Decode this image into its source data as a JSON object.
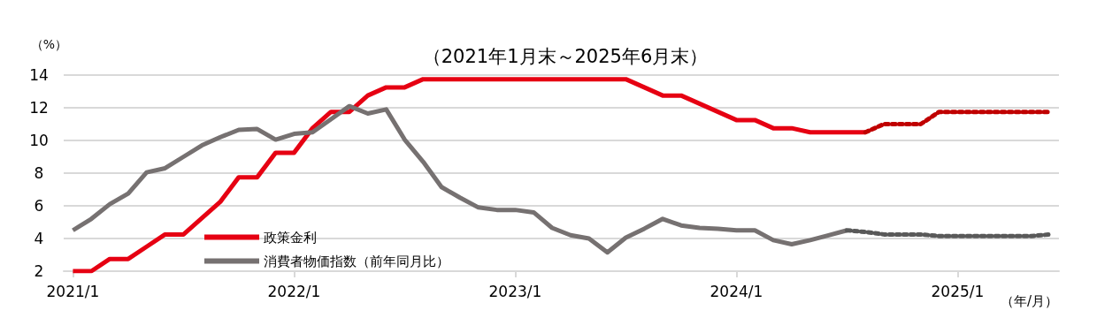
{
  "chart_data": {
    "type": "line",
    "title": "（2021年1月末～2025年6月末）",
    "ylabel": "（%）",
    "annotations": [
      "（年/月）"
    ],
    "categories": [
      "2021/1",
      null,
      null,
      null,
      null,
      null,
      null,
      null,
      null,
      null,
      null,
      null,
      "2022/1",
      null,
      null,
      null,
      null,
      null,
      null,
      null,
      null,
      null,
      null,
      null,
      "2023/1",
      null,
      null,
      null,
      null,
      null,
      null,
      null,
      null,
      null,
      null,
      null,
      "2024/1",
      null,
      null,
      null,
      null,
      null,
      null,
      null,
      null,
      null,
      null,
      null,
      "2025/1",
      null,
      null,
      null,
      null,
      null
    ],
    "series": [
      {
        "name": "政策金利",
        "color": "#e60012",
        "line_style": "solid",
        "values": [
          2.0,
          2.0,
          2.75,
          2.75,
          3.5,
          4.25,
          4.25,
          5.25,
          6.25,
          7.75,
          7.75,
          9.25,
          9.25,
          10.75,
          11.75,
          11.75,
          12.75,
          13.25,
          13.25,
          13.75,
          13.75,
          13.75,
          13.75,
          13.75,
          13.75,
          13.75,
          13.75,
          13.75,
          13.75,
          13.75,
          13.75,
          13.25,
          12.75,
          12.75,
          12.25,
          11.75,
          11.25,
          11.25,
          10.75,
          10.75,
          10.5,
          10.5,
          10.5,
          10.5,
          null,
          null,
          null,
          null,
          null,
          null,
          null,
          null,
          null,
          null
        ]
      },
      {
        "name": "消費者物価指数（前年同月比）",
        "color": "#767171",
        "line_style": "solid",
        "values": [
          4.5,
          5.2,
          6.1,
          6.75,
          8.05,
          8.3,
          9.0,
          9.7,
          10.2,
          10.65,
          10.7,
          10.05,
          10.4,
          10.5,
          11.3,
          12.1,
          11.65,
          11.9,
          10.05,
          8.7,
          7.15,
          6.5,
          5.9,
          5.75,
          5.75,
          5.6,
          4.65,
          4.2,
          4.0,
          3.15,
          4.05,
          4.6,
          5.2,
          4.8,
          4.65,
          4.6,
          4.5,
          4.5,
          3.9,
          3.65,
          3.9,
          4.2,
          4.5,
          null,
          null,
          null,
          null,
          null,
          null,
          null,
          null,
          null,
          null,
          null
        ]
      },
      {
        "color": "#c00000",
        "line_style": "dashed",
        "values": [
          null,
          null,
          null,
          null,
          null,
          null,
          null,
          null,
          null,
          null,
          null,
          null,
          null,
          null,
          null,
          null,
          null,
          null,
          null,
          null,
          null,
          null,
          null,
          null,
          null,
          null,
          null,
          null,
          null,
          null,
          null,
          null,
          null,
          null,
          null,
          null,
          null,
          null,
          null,
          null,
          null,
          null,
          null,
          10.5,
          11.0,
          11.0,
          11.0,
          11.75,
          11.75,
          11.75,
          11.75,
          11.75,
          11.75,
          11.75
        ]
      },
      {
        "color": "#595959",
        "line_style": "dashed",
        "values": [
          null,
          null,
          null,
          null,
          null,
          null,
          null,
          null,
          null,
          null,
          null,
          null,
          null,
          null,
          null,
          null,
          null,
          null,
          null,
          null,
          null,
          null,
          null,
          null,
          null,
          null,
          null,
          null,
          null,
          null,
          null,
          null,
          null,
          null,
          null,
          null,
          null,
          null,
          null,
          null,
          null,
          null,
          4.5,
          4.4,
          4.25,
          4.25,
          4.25,
          4.15,
          4.15,
          4.15,
          4.15,
          4.15,
          4.15,
          4.25
        ]
      }
    ],
    "ylim": [
      2,
      14
    ],
    "yticks": [
      2,
      4,
      6,
      8,
      10,
      12,
      14
    ],
    "grid": "y",
    "legend": "bottom left",
    "marker": "none"
  }
}
